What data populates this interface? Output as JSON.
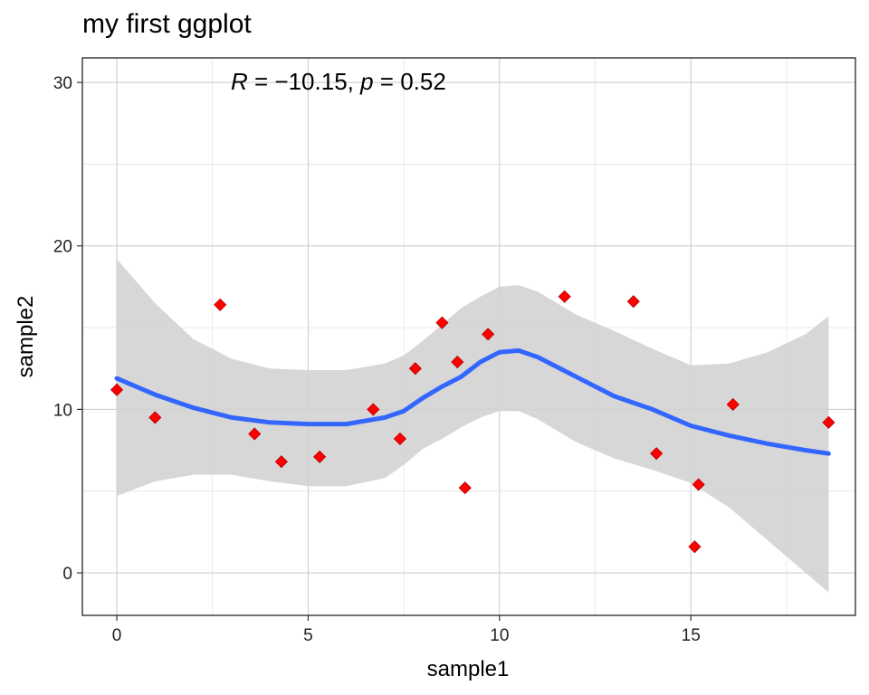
{
  "title": "my first ggplot",
  "annotation": {
    "r_label": "R",
    "r_value": " = −10.15, ",
    "p_label": "p",
    "p_value": " = 0.52"
  },
  "chart_data": {
    "type": "scatter",
    "title": "my first ggplot",
    "xlabel": "sample1",
    "ylabel": "sample2",
    "xlim": [
      -0.9,
      19.3
    ],
    "ylim": [
      -2.6,
      31.5
    ],
    "x_ticks": [
      0,
      5,
      10,
      15
    ],
    "y_ticks": [
      0,
      10,
      20,
      30
    ],
    "grid": true,
    "point_color": "#ff0000",
    "smooth_color": "#3366ff",
    "ribbon_color": "#d3d3d3",
    "points": [
      {
        "x": 0.0,
        "y": 11.2
      },
      {
        "x": 1.0,
        "y": 9.5
      },
      {
        "x": 2.7,
        "y": 16.4
      },
      {
        "x": 3.6,
        "y": 8.5
      },
      {
        "x": 4.3,
        "y": 6.8
      },
      {
        "x": 5.3,
        "y": 7.1
      },
      {
        "x": 6.7,
        "y": 10.0
      },
      {
        "x": 7.4,
        "y": 8.2
      },
      {
        "x": 7.8,
        "y": 12.5
      },
      {
        "x": 8.5,
        "y": 15.3
      },
      {
        "x": 8.9,
        "y": 12.9
      },
      {
        "x": 9.1,
        "y": 5.2
      },
      {
        "x": 9.7,
        "y": 14.6
      },
      {
        "x": 11.7,
        "y": 16.9
      },
      {
        "x": 13.5,
        "y": 16.6
      },
      {
        "x": 14.1,
        "y": 7.3
      },
      {
        "x": 15.1,
        "y": 1.6
      },
      {
        "x": 15.2,
        "y": 5.4
      },
      {
        "x": 16.1,
        "y": 10.3
      },
      {
        "x": 18.6,
        "y": 9.2
      }
    ],
    "smooth": {
      "x": [
        0.0,
        1.0,
        2.0,
        3.0,
        4.0,
        5.0,
        6.0,
        7.0,
        7.5,
        8.0,
        8.5,
        9.0,
        9.5,
        10.0,
        10.5,
        11.0,
        12.0,
        13.0,
        14.0,
        15.0,
        16.0,
        17.0,
        18.0,
        18.6
      ],
      "y": [
        11.9,
        10.9,
        10.1,
        9.5,
        9.2,
        9.1,
        9.1,
        9.5,
        9.9,
        10.7,
        11.4,
        12.0,
        12.9,
        13.5,
        13.6,
        13.2,
        12.0,
        10.8,
        10.0,
        9.0,
        8.4,
        7.9,
        7.5,
        7.3
      ],
      "lower": [
        4.7,
        5.6,
        6.0,
        6.0,
        5.6,
        5.3,
        5.3,
        5.8,
        6.6,
        7.6,
        8.2,
        8.9,
        9.5,
        9.9,
        9.9,
        9.4,
        8.0,
        7.0,
        6.3,
        5.5,
        4.0,
        2.0,
        0.0,
        -1.2
      ],
      "upper": [
        19.2,
        16.5,
        14.3,
        13.1,
        12.5,
        12.4,
        12.4,
        12.8,
        13.3,
        14.2,
        15.2,
        16.2,
        16.9,
        17.5,
        17.6,
        17.2,
        15.8,
        14.8,
        13.7,
        12.7,
        12.8,
        13.5,
        14.6,
        15.7
      ]
    }
  }
}
